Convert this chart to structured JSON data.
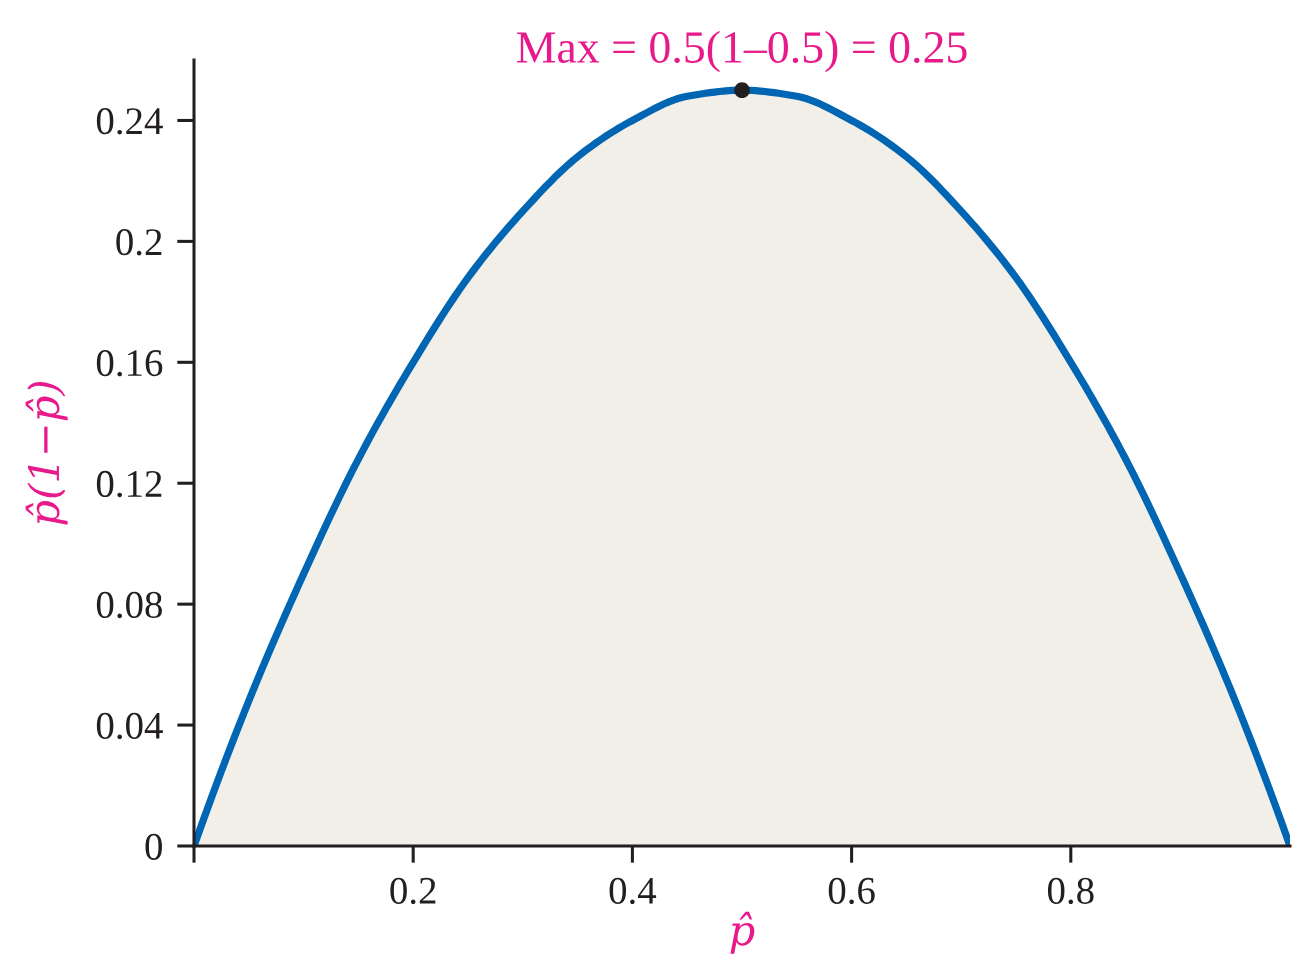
{
  "chart_data": {
    "type": "area",
    "annotations": [
      {
        "text": "Max = 0.5(1–0.5) = 0.25",
        "x": 0.5,
        "y": 0.25
      }
    ],
    "xlabel": "p̂",
    "ylabel": "p̂(1−p̂)",
    "x": [
      0,
      0.05,
      0.1,
      0.15,
      0.2,
      0.25,
      0.3,
      0.35,
      0.4,
      0.45,
      0.5,
      0.55,
      0.6,
      0.65,
      0.7,
      0.75,
      0.8,
      0.85,
      0.9,
      0.95,
      1
    ],
    "series": [
      {
        "color": "#0066b3",
        "line_style": "solid",
        "values": [
          0,
          0.048,
          0.09,
          0.128,
          0.16,
          0.188,
          0.21,
          0.228,
          0.24,
          0.248,
          0.25,
          0.248,
          0.24,
          0.228,
          0.21,
          0.188,
          0.16,
          0.128,
          0.09,
          0.048,
          0
        ]
      },
      {
        "type": "scatter",
        "color": "#231f20",
        "marker": "circle",
        "x": [
          0.5
        ],
        "values": [
          0.25
        ]
      }
    ],
    "xlim": [
      0,
      1
    ],
    "ylim": [
      0,
      0.26
    ],
    "xticks": [
      {
        "value": 0,
        "label": null
      },
      0.2,
      0.4,
      0.6,
      0.8
    ],
    "yticks": [
      0,
      0.04,
      0.08,
      0.12,
      0.16,
      0.2,
      0.24
    ]
  }
}
